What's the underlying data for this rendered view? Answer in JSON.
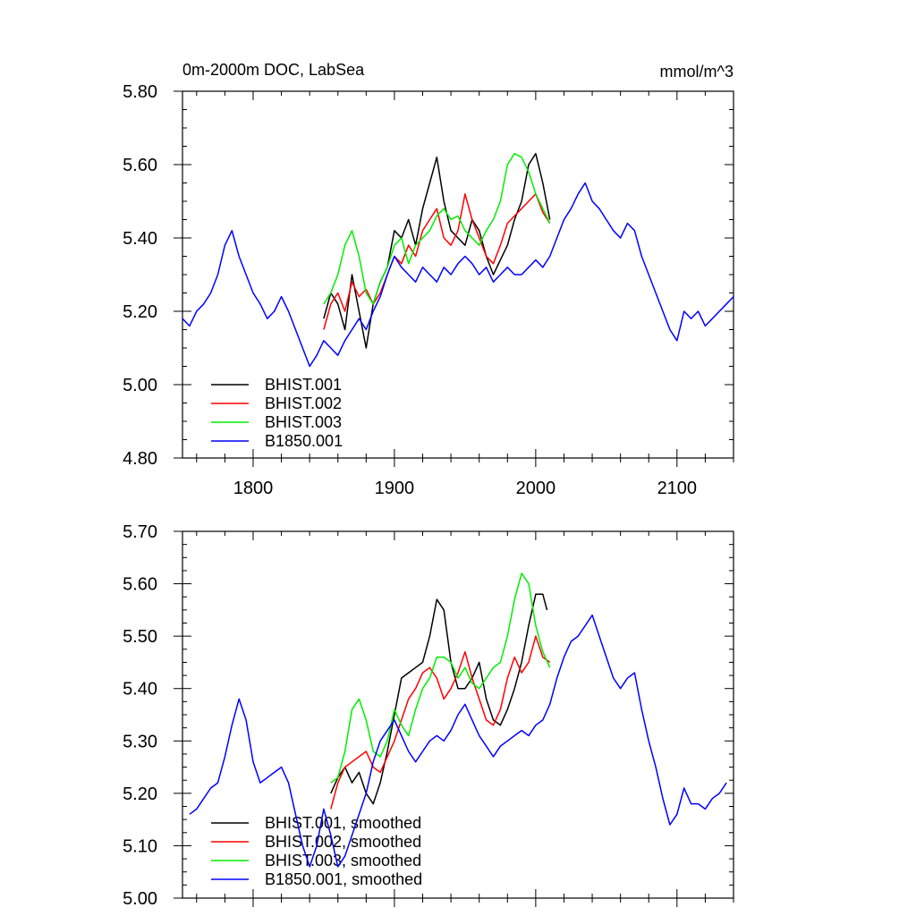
{
  "colors": {
    "BHIST.001": "#000000",
    "BHIST.002": "#ff0000",
    "BHIST.003": "#00ee00",
    "B1850.001": "#0000ff"
  },
  "chart_data": [
    {
      "type": "line",
      "title": "0m-2000m DOC, LabSea",
      "units": "mmol/m^3",
      "xlim": [
        1750,
        2140
      ],
      "ylim": [
        4.8,
        5.8
      ],
      "xticks": [
        1800,
        1900,
        2000,
        2100
      ],
      "xtick_labels": [
        "1800",
        "1900",
        "2000",
        "2100"
      ],
      "yticks": [
        4.8,
        5.0,
        5.2,
        5.4,
        5.6,
        5.8
      ],
      "ytick_labels": [
        "4.80",
        "5.00",
        "5.20",
        "5.40",
        "5.60",
        "5.80"
      ],
      "legend_position": "bottom-left",
      "series": [
        {
          "name": "BHIST.001",
          "x": [
            1850,
            1855,
            1860,
            1865,
            1870,
            1875,
            1880,
            1885,
            1890,
            1895,
            1900,
            1905,
            1910,
            1915,
            1920,
            1925,
            1930,
            1935,
            1940,
            1945,
            1950,
            1955,
            1960,
            1965,
            1970,
            1975,
            1980,
            1985,
            1990,
            1995,
            2000,
            2005,
            2010
          ],
          "y": [
            5.18,
            5.25,
            5.22,
            5.15,
            5.3,
            5.2,
            5.1,
            5.22,
            5.28,
            5.32,
            5.42,
            5.4,
            5.45,
            5.38,
            5.48,
            5.55,
            5.62,
            5.5,
            5.42,
            5.4,
            5.38,
            5.45,
            5.42,
            5.35,
            5.3,
            5.34,
            5.38,
            5.45,
            5.5,
            5.6,
            5.63,
            5.55,
            5.45
          ]
        },
        {
          "name": "BHIST.002",
          "x": [
            1850,
            1855,
            1860,
            1865,
            1870,
            1875,
            1880,
            1885,
            1890,
            1895,
            1900,
            1905,
            1910,
            1915,
            1920,
            1925,
            1930,
            1935,
            1940,
            1945,
            1950,
            1955,
            1960,
            1965,
            1970,
            1975,
            1980,
            1985,
            1990,
            1995,
            2000,
            2005,
            2010
          ],
          "y": [
            5.15,
            5.22,
            5.25,
            5.2,
            5.28,
            5.24,
            5.26,
            5.22,
            5.25,
            5.3,
            5.35,
            5.33,
            5.38,
            5.35,
            5.42,
            5.45,
            5.48,
            5.4,
            5.38,
            5.42,
            5.52,
            5.45,
            5.4,
            5.35,
            5.33,
            5.38,
            5.44,
            5.46,
            5.48,
            5.5,
            5.52,
            5.47,
            5.44
          ]
        },
        {
          "name": "BHIST.003",
          "x": [
            1850,
            1855,
            1860,
            1865,
            1870,
            1875,
            1880,
            1885,
            1890,
            1895,
            1900,
            1905,
            1910,
            1915,
            1920,
            1925,
            1930,
            1935,
            1940,
            1945,
            1950,
            1955,
            1960,
            1965,
            1970,
            1975,
            1980,
            1985,
            1990,
            1995,
            2000,
            2005,
            2010
          ],
          "y": [
            5.22,
            5.25,
            5.3,
            5.38,
            5.42,
            5.35,
            5.25,
            5.22,
            5.28,
            5.32,
            5.38,
            5.4,
            5.33,
            5.38,
            5.4,
            5.42,
            5.46,
            5.48,
            5.45,
            5.46,
            5.42,
            5.4,
            5.38,
            5.42,
            5.45,
            5.5,
            5.6,
            5.63,
            5.62,
            5.58,
            5.52,
            5.48,
            5.44
          ]
        },
        {
          "name": "B1850.001",
          "x": [
            1750,
            1755,
            1760,
            1765,
            1770,
            1775,
            1780,
            1785,
            1790,
            1795,
            1800,
            1805,
            1810,
            1815,
            1820,
            1825,
            1830,
            1835,
            1840,
            1845,
            1850,
            1855,
            1860,
            1865,
            1870,
            1875,
            1880,
            1885,
            1890,
            1895,
            1900,
            1905,
            1910,
            1915,
            1920,
            1925,
            1930,
            1935,
            1940,
            1945,
            1950,
            1955,
            1960,
            1965,
            1970,
            1975,
            1980,
            1985,
            1990,
            1995,
            2000,
            2005,
            2010,
            2015,
            2020,
            2025,
            2030,
            2035,
            2040,
            2045,
            2050,
            2055,
            2060,
            2065,
            2070,
            2075,
            2080,
            2085,
            2090,
            2095,
            2100,
            2105,
            2110,
            2115,
            2120,
            2125,
            2130,
            2135,
            2140
          ],
          "y": [
            5.18,
            5.16,
            5.2,
            5.22,
            5.25,
            5.3,
            5.38,
            5.42,
            5.35,
            5.3,
            5.25,
            5.22,
            5.18,
            5.2,
            5.24,
            5.2,
            5.15,
            5.1,
            5.05,
            5.08,
            5.12,
            5.1,
            5.08,
            5.12,
            5.15,
            5.18,
            5.15,
            5.2,
            5.24,
            5.3,
            5.35,
            5.32,
            5.3,
            5.28,
            5.32,
            5.3,
            5.28,
            5.32,
            5.3,
            5.33,
            5.35,
            5.33,
            5.3,
            5.32,
            5.28,
            5.3,
            5.32,
            5.3,
            5.3,
            5.32,
            5.34,
            5.32,
            5.35,
            5.4,
            5.45,
            5.48,
            5.52,
            5.55,
            5.5,
            5.48,
            5.45,
            5.42,
            5.4,
            5.44,
            5.42,
            5.35,
            5.3,
            5.25,
            5.2,
            5.15,
            5.12,
            5.2,
            5.18,
            5.2,
            5.16,
            5.18,
            5.2,
            5.22,
            5.24
          ]
        }
      ]
    },
    {
      "type": "line",
      "title": "",
      "xlim": [
        1750,
        2140
      ],
      "ylim": [
        5.0,
        5.7
      ],
      "xticks": [
        1800,
        1900,
        2000,
        2100
      ],
      "xtick_labels": [],
      "yticks": [
        5.0,
        5.1,
        5.2,
        5.3,
        5.4,
        5.5,
        5.6,
        5.7
      ],
      "ytick_labels": [
        "5.00",
        "5.10",
        "5.20",
        "5.30",
        "5.40",
        "5.50",
        "5.60",
        "5.70"
      ],
      "legend_position": "bottom-left",
      "series": [
        {
          "name": "BHIST.001, smoothed",
          "color_key": "BHIST.001",
          "x": [
            1855,
            1860,
            1865,
            1870,
            1875,
            1880,
            1885,
            1890,
            1895,
            1900,
            1905,
            1910,
            1915,
            1920,
            1925,
            1930,
            1935,
            1940,
            1945,
            1950,
            1955,
            1960,
            1965,
            1970,
            1975,
            1980,
            1985,
            1990,
            1995,
            2000,
            2005,
            2008
          ],
          "y": [
            5.2,
            5.23,
            5.25,
            5.22,
            5.24,
            5.2,
            5.18,
            5.22,
            5.28,
            5.35,
            5.42,
            5.43,
            5.44,
            5.45,
            5.5,
            5.57,
            5.55,
            5.45,
            5.4,
            5.4,
            5.42,
            5.45,
            5.38,
            5.34,
            5.33,
            5.36,
            5.4,
            5.45,
            5.52,
            5.58,
            5.58,
            5.55
          ]
        },
        {
          "name": "BHIST.002, smoothed",
          "color_key": "BHIST.002",
          "x": [
            1855,
            1860,
            1865,
            1870,
            1875,
            1880,
            1885,
            1890,
            1895,
            1900,
            1905,
            1910,
            1915,
            1920,
            1925,
            1930,
            1935,
            1940,
            1945,
            1950,
            1955,
            1960,
            1965,
            1970,
            1975,
            1980,
            1985,
            1990,
            1995,
            2000,
            2005,
            2010
          ],
          "y": [
            5.17,
            5.22,
            5.25,
            5.26,
            5.27,
            5.28,
            5.25,
            5.24,
            5.27,
            5.3,
            5.34,
            5.38,
            5.4,
            5.43,
            5.44,
            5.42,
            5.38,
            5.4,
            5.43,
            5.47,
            5.42,
            5.38,
            5.34,
            5.33,
            5.36,
            5.42,
            5.46,
            5.43,
            5.45,
            5.5,
            5.46,
            5.45
          ]
        },
        {
          "name": "BHIST.003, smoothed",
          "color_key": "BHIST.003",
          "x": [
            1855,
            1860,
            1865,
            1870,
            1875,
            1880,
            1885,
            1890,
            1895,
            1900,
            1905,
            1910,
            1915,
            1920,
            1925,
            1930,
            1935,
            1940,
            1945,
            1950,
            1955,
            1960,
            1965,
            1970,
            1975,
            1980,
            1985,
            1990,
            1995,
            2000,
            2005,
            2010
          ],
          "y": [
            5.22,
            5.23,
            5.28,
            5.36,
            5.38,
            5.34,
            5.28,
            5.27,
            5.3,
            5.36,
            5.33,
            5.31,
            5.36,
            5.4,
            5.42,
            5.46,
            5.46,
            5.45,
            5.42,
            5.44,
            5.41,
            5.4,
            5.42,
            5.44,
            5.45,
            5.5,
            5.57,
            5.62,
            5.6,
            5.52,
            5.47,
            5.44
          ]
        },
        {
          "name": "B1850.001, smoothed",
          "color_key": "B1850.001",
          "x": [
            1755,
            1760,
            1765,
            1770,
            1775,
            1780,
            1785,
            1790,
            1795,
            1800,
            1805,
            1810,
            1815,
            1820,
            1825,
            1830,
            1835,
            1840,
            1845,
            1850,
            1855,
            1860,
            1865,
            1870,
            1875,
            1880,
            1885,
            1890,
            1895,
            1900,
            1905,
            1910,
            1915,
            1920,
            1925,
            1930,
            1935,
            1940,
            1945,
            1950,
            1955,
            1960,
            1965,
            1970,
            1975,
            1980,
            1985,
            1990,
            1995,
            2000,
            2005,
            2010,
            2015,
            2020,
            2025,
            2030,
            2035,
            2040,
            2045,
            2050,
            2055,
            2060,
            2065,
            2070,
            2075,
            2080,
            2085,
            2090,
            2095,
            2100,
            2105,
            2110,
            2115,
            2120,
            2125,
            2130,
            2135
          ],
          "y": [
            5.16,
            5.17,
            5.19,
            5.21,
            5.22,
            5.27,
            5.33,
            5.38,
            5.34,
            5.26,
            5.22,
            5.23,
            5.24,
            5.25,
            5.22,
            5.16,
            5.1,
            5.06,
            5.1,
            5.17,
            5.12,
            5.06,
            5.08,
            5.12,
            5.16,
            5.2,
            5.26,
            5.3,
            5.32,
            5.34,
            5.31,
            5.28,
            5.26,
            5.28,
            5.3,
            5.31,
            5.3,
            5.32,
            5.35,
            5.37,
            5.34,
            5.31,
            5.29,
            5.27,
            5.29,
            5.3,
            5.31,
            5.32,
            5.31,
            5.33,
            5.34,
            5.37,
            5.42,
            5.46,
            5.49,
            5.5,
            5.52,
            5.54,
            5.5,
            5.46,
            5.42,
            5.4,
            5.42,
            5.43,
            5.36,
            5.3,
            5.25,
            5.19,
            5.14,
            5.16,
            5.21,
            5.18,
            5.18,
            5.17,
            5.19,
            5.2,
            5.22
          ]
        }
      ]
    }
  ]
}
